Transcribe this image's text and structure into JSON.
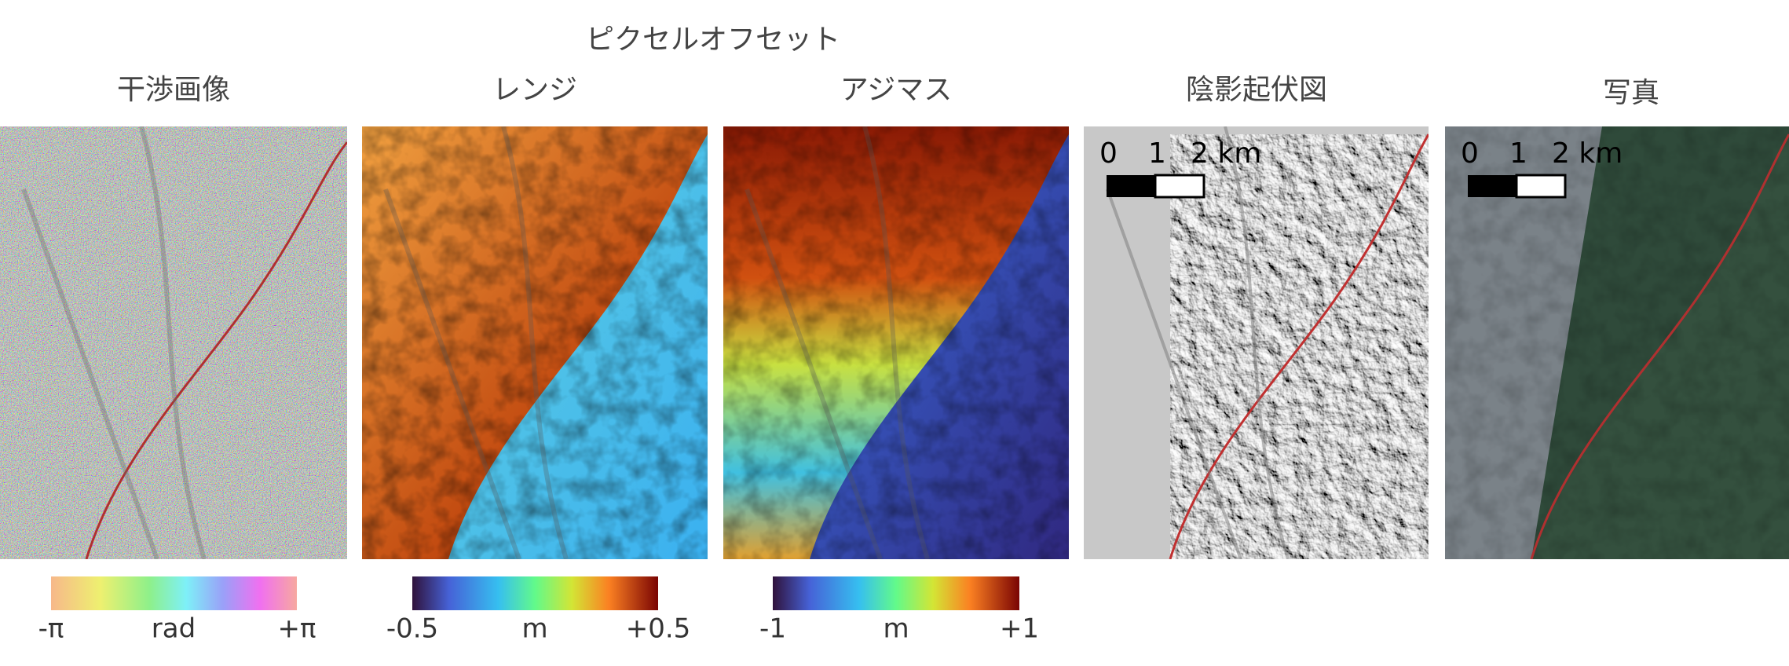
{
  "header": {
    "title": "ピクセルオフセット"
  },
  "panels": [
    {
      "title": "干渉画像",
      "colorbar": {
        "min": "-π",
        "unit": "rad",
        "max": "+π"
      }
    },
    {
      "title": "レンジ",
      "colorbar": {
        "min": "-0.5",
        "unit": "m",
        "max": "+0.5"
      }
    },
    {
      "title": "アジマス",
      "colorbar": {
        "min": "-1",
        "unit": "m",
        "max": "+1"
      }
    },
    {
      "title": "陰影起伏図",
      "scale_bar": [
        "0",
        "1",
        "2 km"
      ]
    },
    {
      "title": "写真",
      "scale_bar": [
        "0",
        "1",
        "2 km"
      ]
    }
  ]
}
